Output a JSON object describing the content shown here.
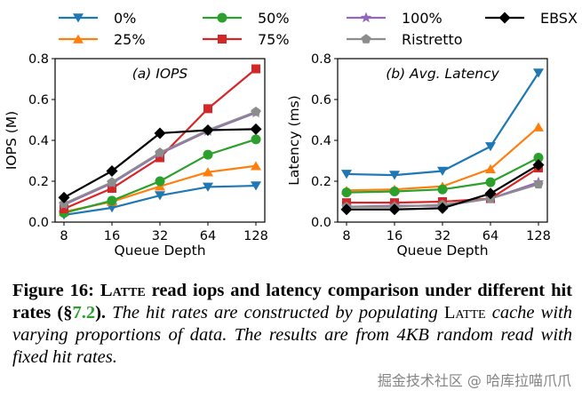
{
  "legend": [
    {
      "label": "0%",
      "color": "#1f77b4",
      "marker": "triangle-down"
    },
    {
      "label": "50%",
      "color": "#2ca02c",
      "marker": "circle"
    },
    {
      "label": "100%",
      "color": "#9467bd",
      "marker": "star"
    },
    {
      "label": "EBSX",
      "color": "#000000",
      "marker": "diamond"
    },
    {
      "label": "25%",
      "color": "#ff7f0e",
      "marker": "triangle-up"
    },
    {
      "label": "75%",
      "color": "#d62728",
      "marker": "square"
    },
    {
      "label": "Ristretto",
      "color": "#8c8c8c",
      "marker": "pentagon"
    }
  ],
  "chart_data": [
    {
      "type": "line",
      "title": "(a) IOPS",
      "xlabel": "Queue Depth",
      "ylabel": "IOPS (M)",
      "categories": [
        "8",
        "16",
        "32",
        "64",
        "128"
      ],
      "ylim": [
        0,
        0.8
      ],
      "yticks": [
        "0.0",
        "0.2",
        "0.4",
        "0.6",
        "0.8"
      ],
      "series": [
        {
          "name": "0%",
          "values": [
            0.035,
            0.07,
            0.13,
            0.172,
            0.178
          ]
        },
        {
          "name": "25%",
          "values": [
            0.05,
            0.1,
            0.175,
            0.245,
            0.275
          ]
        },
        {
          "name": "50%",
          "values": [
            0.045,
            0.105,
            0.2,
            0.33,
            0.405
          ]
        },
        {
          "name": "75%",
          "values": [
            0.065,
            0.165,
            0.315,
            0.555,
            0.75
          ]
        },
        {
          "name": "100%",
          "values": [
            0.085,
            0.19,
            0.335,
            0.445,
            0.535
          ]
        },
        {
          "name": "Ristretto",
          "values": [
            0.09,
            0.195,
            0.34,
            0.45,
            0.54
          ]
        },
        {
          "name": "EBSX",
          "values": [
            0.12,
            0.25,
            0.435,
            0.45,
            0.455
          ]
        }
      ]
    },
    {
      "type": "line",
      "title": "(b) Avg. Latency",
      "xlabel": "Queue Depth",
      "ylabel": "Latency (ms)",
      "categories": [
        "8",
        "16",
        "32",
        "64",
        "128"
      ],
      "ylim": [
        0,
        0.8
      ],
      "yticks": [
        "0.0",
        "0.2",
        "0.4",
        "0.6",
        "0.8"
      ],
      "series": [
        {
          "name": "0%",
          "values": [
            0.235,
            0.23,
            0.25,
            0.37,
            0.73
          ]
        },
        {
          "name": "25%",
          "values": [
            0.155,
            0.16,
            0.175,
            0.26,
            0.465
          ]
        },
        {
          "name": "50%",
          "values": [
            0.145,
            0.15,
            0.16,
            0.195,
            0.315
          ]
        },
        {
          "name": "75%",
          "values": [
            0.095,
            0.095,
            0.1,
            0.115,
            0.265
          ]
        },
        {
          "name": "100%",
          "values": [
            0.075,
            0.08,
            0.08,
            0.115,
            0.195
          ]
        },
        {
          "name": "Ristretto",
          "values": [
            0.075,
            0.075,
            0.085,
            0.115,
            0.185
          ]
        },
        {
          "name": "EBSX",
          "values": [
            0.062,
            0.062,
            0.068,
            0.14,
            0.28
          ]
        }
      ]
    }
  ],
  "caption": {
    "label": "Figure 16: ",
    "latte": "Latte",
    "bold_rest": " read iops and latency comparison under different hit rates (§",
    "ref": "7.2",
    "bold_end": ").",
    "italic_1": " The hit rates are constructed by populating ",
    "latte2": "Latte",
    "italic_2": " cache with varying proportions of data. The results are from 4KB random read with fixed hit rates."
  },
  "watermark": "掘金技术社区 @ 哈库拉喵爪爪"
}
